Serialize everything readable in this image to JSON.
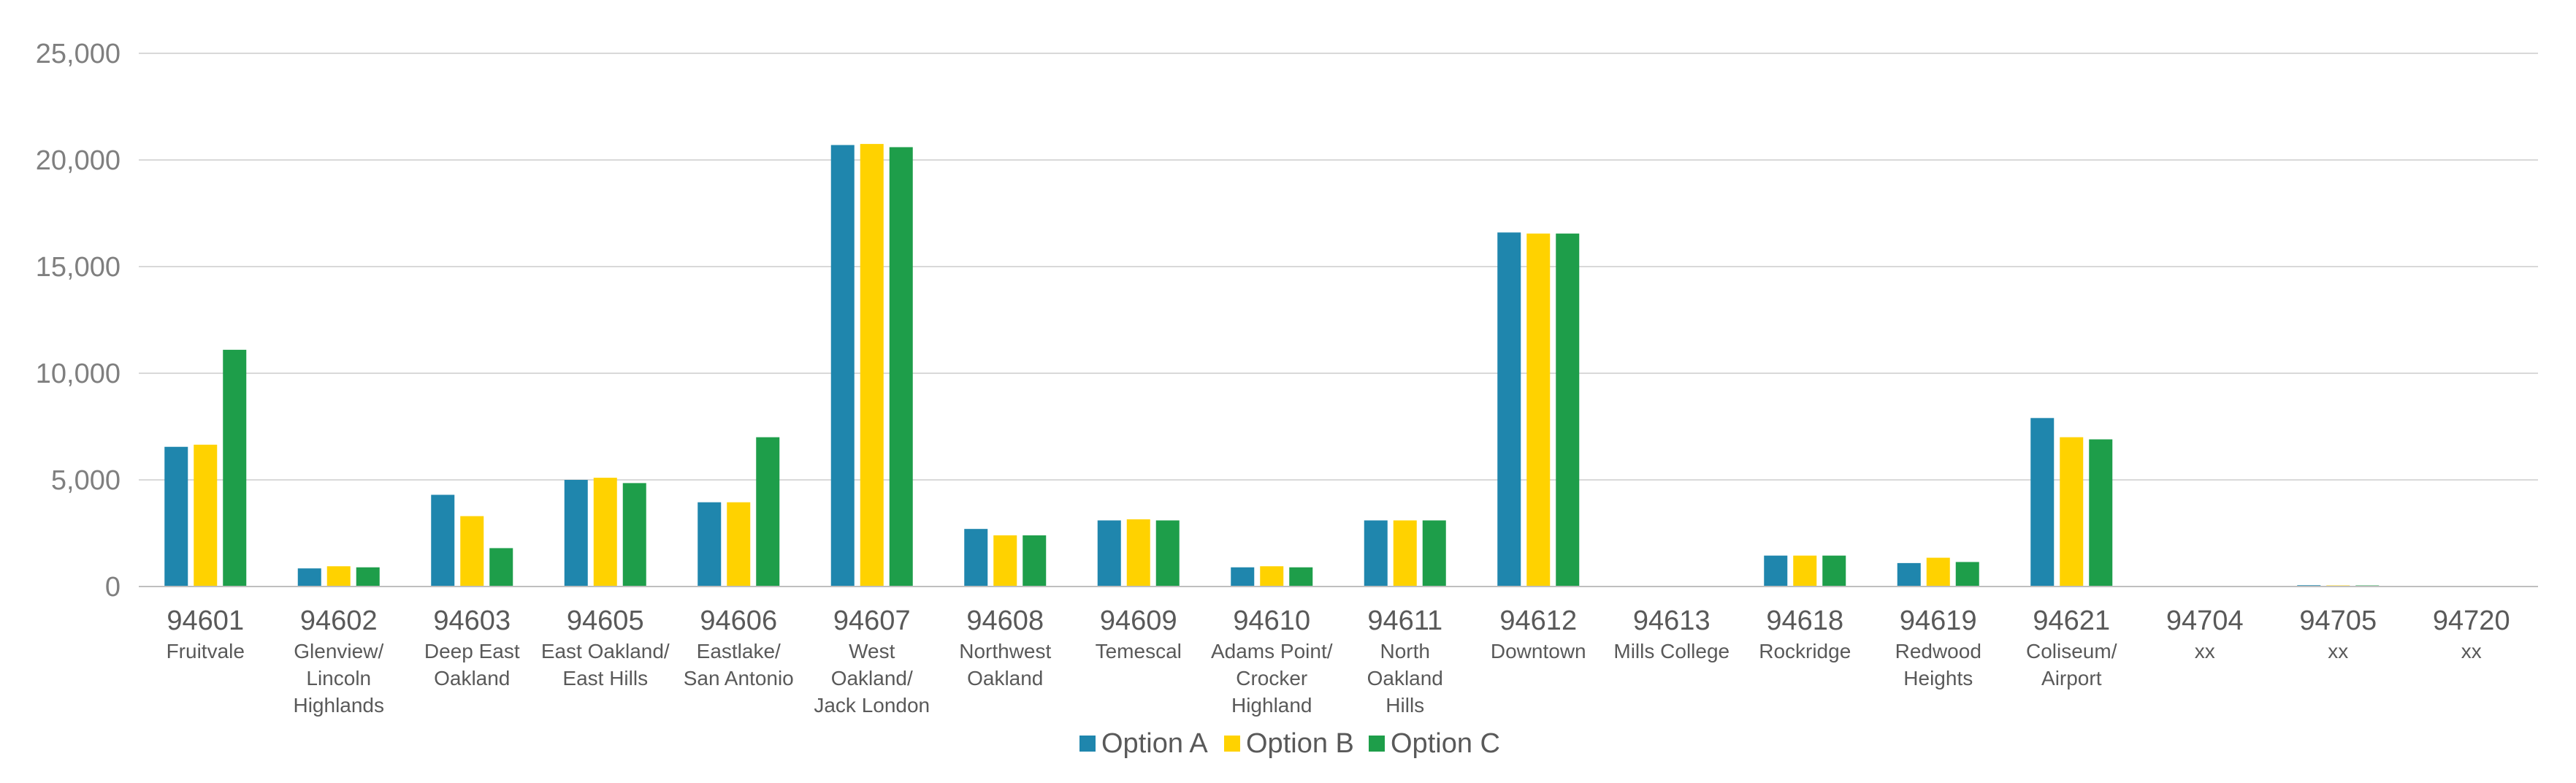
{
  "chart_data": {
    "type": "bar",
    "title": "",
    "xlabel": "",
    "ylabel": "",
    "ylim": [
      0,
      25000
    ],
    "yticks": [
      0,
      5000,
      10000,
      15000,
      20000,
      25000
    ],
    "ytick_labels": [
      "0",
      "5,000",
      "10,000",
      "15,000",
      "20,000",
      "25,000"
    ],
    "grid": true,
    "legend_position": "bottom",
    "categories": [
      {
        "code": "94601",
        "name": [
          "Fruitvale"
        ]
      },
      {
        "code": "94602",
        "name": [
          "Glenview/",
          "Lincoln",
          "Highlands"
        ]
      },
      {
        "code": "94603",
        "name": [
          "Deep East",
          "Oakland"
        ]
      },
      {
        "code": "94605",
        "name": [
          "East Oakland/",
          "East Hills"
        ]
      },
      {
        "code": "94606",
        "name": [
          "Eastlake/",
          "San Antonio"
        ]
      },
      {
        "code": "94607",
        "name": [
          "West",
          "Oakland/",
          "Jack London"
        ]
      },
      {
        "code": "94608",
        "name": [
          "Northwest",
          "Oakland"
        ]
      },
      {
        "code": "94609",
        "name": [
          "Temescal"
        ]
      },
      {
        "code": "94610",
        "name": [
          "Adams Point/",
          "Crocker",
          "Highland"
        ]
      },
      {
        "code": "94611",
        "name": [
          "North",
          "Oakland",
          "Hills"
        ]
      },
      {
        "code": "94612",
        "name": [
          "Downtown"
        ]
      },
      {
        "code": "94613",
        "name": [
          "Mills College"
        ]
      },
      {
        "code": "94618",
        "name": [
          "Rockridge"
        ]
      },
      {
        "code": "94619",
        "name": [
          "Redwood",
          "Heights"
        ]
      },
      {
        "code": "94621",
        "name": [
          "Coliseum/",
          "Airport"
        ]
      },
      {
        "code": "94704",
        "name": [
          "xx"
        ]
      },
      {
        "code": "94705",
        "name": [
          "xx"
        ]
      },
      {
        "code": "94720",
        "name": [
          "xx"
        ]
      }
    ],
    "series": [
      {
        "name": "Option A",
        "color": "#1f86ad",
        "values": [
          6550,
          850,
          4300,
          5000,
          3950,
          20700,
          2700,
          3100,
          900,
          3100,
          16600,
          0,
          1450,
          1100,
          7900,
          0,
          60,
          30
        ]
      },
      {
        "name": "Option B",
        "color": "#ffd200",
        "values": [
          6650,
          950,
          3300,
          5100,
          3950,
          20750,
          2400,
          3150,
          950,
          3100,
          16550,
          0,
          1450,
          1350,
          7000,
          0,
          50,
          30
        ]
      },
      {
        "name": "Option C",
        "color": "#1e9e4a",
        "values": [
          11100,
          900,
          1800,
          4850,
          7000,
          20600,
          2400,
          3100,
          900,
          3100,
          16550,
          0,
          1450,
          1150,
          6900,
          0,
          50,
          30
        ]
      }
    ]
  }
}
